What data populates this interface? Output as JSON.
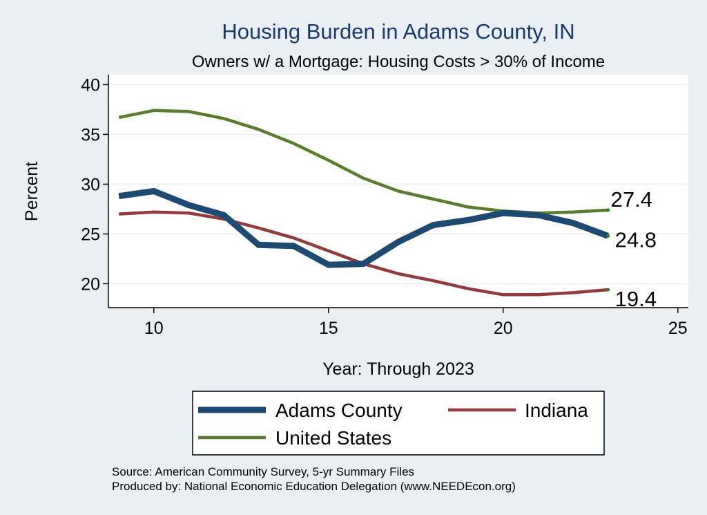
{
  "chart_data": {
    "type": "line",
    "title": "Housing Burden in Adams County, IN",
    "subtitle": "Owners w/ a Mortgage: Housing Costs > 30% of Income",
    "xlabel": "Year: Through 2023",
    "ylabel": "Percent",
    "xlim": [
      8.7,
      25.3
    ],
    "ylim": [
      17.6,
      41.0
    ],
    "xticks": [
      10,
      15,
      20,
      25
    ],
    "yticks": [
      20,
      25,
      30,
      35,
      40
    ],
    "grid": true,
    "x": [
      9,
      10,
      11,
      12,
      13,
      14,
      15,
      16,
      17,
      18,
      19,
      20,
      21,
      22,
      23
    ],
    "series": [
      {
        "name": "Adams County",
        "color": "#1d4a72",
        "values": [
          28.8,
          29.3,
          27.9,
          26.9,
          23.9,
          23.8,
          21.9,
          22.0,
          24.2,
          25.9,
          26.4,
          27.1,
          26.9,
          26.1,
          24.8
        ],
        "end_label": "24.8"
      },
      {
        "name": "Indiana",
        "color": "#943a3c",
        "values": [
          27.0,
          27.2,
          27.1,
          26.5,
          25.6,
          24.6,
          23.3,
          22.0,
          21.0,
          20.3,
          19.5,
          18.9,
          18.9,
          19.1,
          19.4
        ],
        "end_label": "19.4"
      },
      {
        "name": "United States",
        "color": "#5a7d2d",
        "values": [
          36.7,
          37.4,
          37.3,
          36.6,
          35.5,
          34.1,
          32.4,
          30.6,
          29.3,
          28.5,
          27.7,
          27.3,
          27.1,
          27.2,
          27.4
        ],
        "end_label": "27.4"
      }
    ],
    "legend": {
      "position": "bottom",
      "entries": [
        "Adams County",
        "Indiana",
        "United States"
      ]
    },
    "notes": [
      "Source: American Community Survey, 5-yr Summary Files",
      "Produced by: National Economic Education Delegation (www.NEEDEcon.org)"
    ],
    "colors": {
      "background": "#e9eff2",
      "plot_background": "#ffffff",
      "grid": "#e9eff2",
      "title": "#1a3a6e",
      "end_dot": "#1f8a1f"
    }
  }
}
